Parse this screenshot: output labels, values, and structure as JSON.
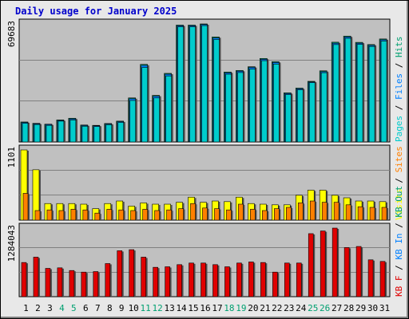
{
  "window": {
    "title": "Daily usage for January 2025"
  },
  "colors": {
    "pages": "#00cccc",
    "files": "#0080ff",
    "hits": "#00a070",
    "visits": "#ffff00",
    "sites": "#ff8000",
    "in": "#ff8000",
    "kbf": "#e00000",
    "kbin": "#0080ff",
    "kbout": "#00a070",
    "separator": "#808080",
    "plot_bg": "#c0c0c0"
  },
  "chart_data": [
    {
      "type": "bar",
      "name": "requests",
      "categories": [
        "1",
        "2",
        "3",
        "4",
        "5",
        "6",
        "7",
        "8",
        "9",
        "10",
        "11",
        "12",
        "13",
        "14",
        "15",
        "16",
        "17",
        "18",
        "19",
        "20",
        "21",
        "22",
        "23",
        "24",
        "25",
        "26",
        "27",
        "28",
        "29",
        "30",
        "31"
      ],
      "weekend_days": [
        "4",
        "5",
        "11",
        "12",
        "18",
        "19",
        "25",
        "26"
      ],
      "ymax_label": "69683",
      "ylim": [
        0,
        69683
      ],
      "legend": [
        "Pages",
        "Files",
        "Hits"
      ],
      "separators": [
        "/",
        "/"
      ],
      "series": [
        {
          "name": "Hits",
          "values": [
            11800,
            11000,
            10500,
            13000,
            14000,
            10000,
            9800,
            10900,
            12300,
            26000,
            45800,
            27500,
            40500,
            69000,
            69000,
            69683,
            62000,
            41300,
            42200,
            44400,
            49300,
            47400,
            29000,
            31800,
            35800,
            42000,
            58900,
            62500,
            58800,
            57500,
            60800
          ]
        },
        {
          "name": "Files",
          "values": [
            11500,
            10700,
            10300,
            12700,
            13600,
            9700,
            9500,
            10600,
            12000,
            25500,
            45200,
            27000,
            40000,
            68600,
            68600,
            69300,
            61400,
            40800,
            41800,
            44000,
            48800,
            46900,
            28600,
            31400,
            35400,
            41500,
            58300,
            62000,
            58300,
            57000,
            60300
          ]
        },
        {
          "name": "Pages",
          "values": [
            11000,
            10300,
            9800,
            12300,
            13000,
            9300,
            9100,
            10200,
            11500,
            24500,
            44000,
            26000,
            39000,
            68000,
            68000,
            68700,
            60500,
            40000,
            41000,
            43000,
            48000,
            46000,
            28000,
            30800,
            35000,
            40900,
            57500,
            61200,
            57600,
            56400,
            59600
          ]
        }
      ]
    },
    {
      "type": "bar",
      "name": "visitors",
      "categories": [
        "1",
        "2",
        "3",
        "4",
        "5",
        "6",
        "7",
        "8",
        "9",
        "10",
        "11",
        "12",
        "13",
        "14",
        "15",
        "16",
        "17",
        "18",
        "19",
        "20",
        "21",
        "22",
        "23",
        "24",
        "25",
        "26",
        "27",
        "28",
        "29",
        "30",
        "31"
      ],
      "ymax_label": "1101",
      "ylim": [
        0,
        1101
      ],
      "legend": [
        "Visits",
        "Sites"
      ],
      "separators": [
        "/"
      ],
      "series": [
        {
          "name": "Visits",
          "values": [
            1101,
            790,
            260,
            260,
            260,
            250,
            180,
            260,
            300,
            220,
            270,
            250,
            250,
            280,
            360,
            280,
            300,
            290,
            360,
            260,
            250,
            240,
            240,
            390,
            470,
            470,
            390,
            350,
            300,
            300,
            290
          ]
        },
        {
          "name": "Sites",
          "values": [
            420,
            150,
            160,
            150,
            170,
            160,
            110,
            170,
            160,
            150,
            170,
            150,
            160,
            180,
            260,
            190,
            180,
            160,
            250,
            170,
            150,
            180,
            200,
            270,
            300,
            280,
            280,
            240,
            210,
            200,
            200
          ]
        }
      ]
    },
    {
      "type": "bar",
      "name": "traffic",
      "categories": [
        "1",
        "2",
        "3",
        "4",
        "5",
        "6",
        "7",
        "8",
        "9",
        "10",
        "11",
        "12",
        "13",
        "14",
        "15",
        "16",
        "17",
        "18",
        "19",
        "20",
        "21",
        "22",
        "23",
        "24",
        "25",
        "26",
        "27",
        "28",
        "29",
        "30",
        "31"
      ],
      "ymax_label": "1284043",
      "ylim": [
        0,
        1284043
      ],
      "legend": [
        "KB F",
        "KB In",
        "KB Out"
      ],
      "separators": [
        "/",
        "/"
      ],
      "series": [
        {
          "name": "KB F",
          "values": [
            640000,
            740000,
            530000,
            540000,
            490000,
            460000,
            470000,
            620000,
            860000,
            880000,
            740000,
            550000,
            560000,
            600000,
            630000,
            630000,
            600000,
            560000,
            630000,
            650000,
            640000,
            460000,
            630000,
            630000,
            1180000,
            1230000,
            1284043,
            920000,
            940000,
            690000,
            660000
          ]
        }
      ]
    }
  ]
}
